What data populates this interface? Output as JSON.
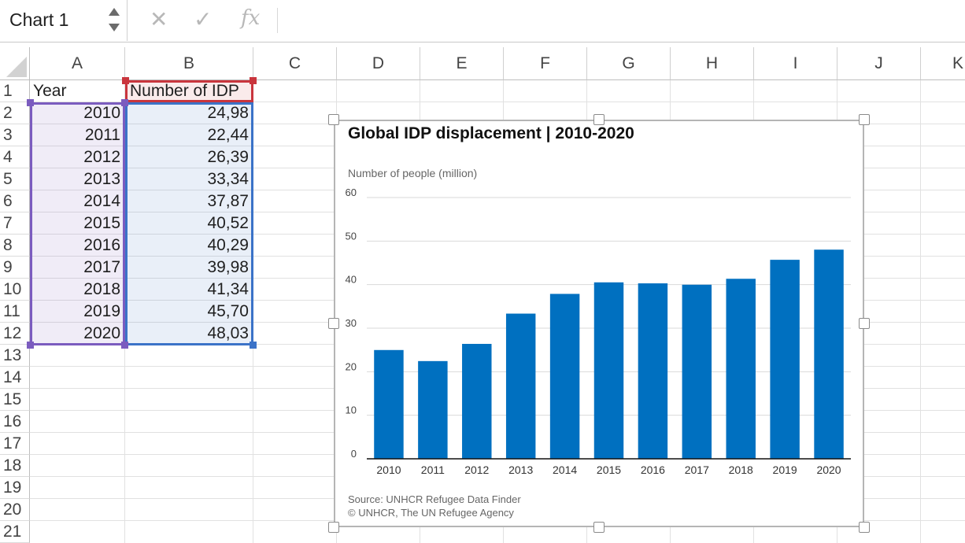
{
  "formula_bar": {
    "name_box": "Chart 1",
    "cancel_icon": "x-icon",
    "enter_icon": "checkmark-icon",
    "function_icon": "fx-icon",
    "cancel_glyph": "✕",
    "enter_glyph": "✓",
    "function_glyph": "fx",
    "formula": ""
  },
  "columns": [
    "A",
    "B",
    "C",
    "D",
    "E",
    "F",
    "G",
    "H",
    "I",
    "J",
    "K"
  ],
  "rows": [
    "1",
    "2",
    "3",
    "4",
    "5",
    "6",
    "7",
    "8",
    "9",
    "10",
    "11",
    "12",
    "13",
    "14",
    "15",
    "16",
    "17",
    "18",
    "19",
    "20",
    "21"
  ],
  "cells": {
    "A1": "Year",
    "B1": "Number of IDP",
    "years": [
      "2010",
      "2011",
      "2012",
      "2013",
      "2014",
      "2015",
      "2016",
      "2017",
      "2018",
      "2019",
      "2020"
    ],
    "idp": [
      "24,98",
      "22,44",
      "26,39",
      "33,34",
      "37,87",
      "40,52",
      "40,29",
      "39,98",
      "41,34",
      "45,70",
      "48,03"
    ]
  },
  "range_colors": {
    "year": "#7b5cbf",
    "idp": "#3b73c8",
    "header": "#c9353d"
  },
  "chart_data": {
    "type": "bar",
    "title": "Global IDP displacement | 2010-2020",
    "ylabel": "Number of people (million)",
    "xlabel": "",
    "categories": [
      "2010",
      "2011",
      "2012",
      "2013",
      "2014",
      "2015",
      "2016",
      "2017",
      "2018",
      "2019",
      "2020"
    ],
    "values": [
      24.98,
      22.44,
      26.39,
      33.34,
      37.87,
      40.52,
      40.29,
      39.98,
      41.34,
      45.7,
      48.03
    ],
    "ylim": [
      0,
      60
    ],
    "yticks": [
      0,
      10,
      20,
      30,
      40,
      50,
      60
    ],
    "grid": true,
    "bar_color": "#0070c0",
    "source": "Source: UNHCR Refugee Data Finder",
    "copyright": "© UNHCR, The UN Refugee Agency"
  }
}
